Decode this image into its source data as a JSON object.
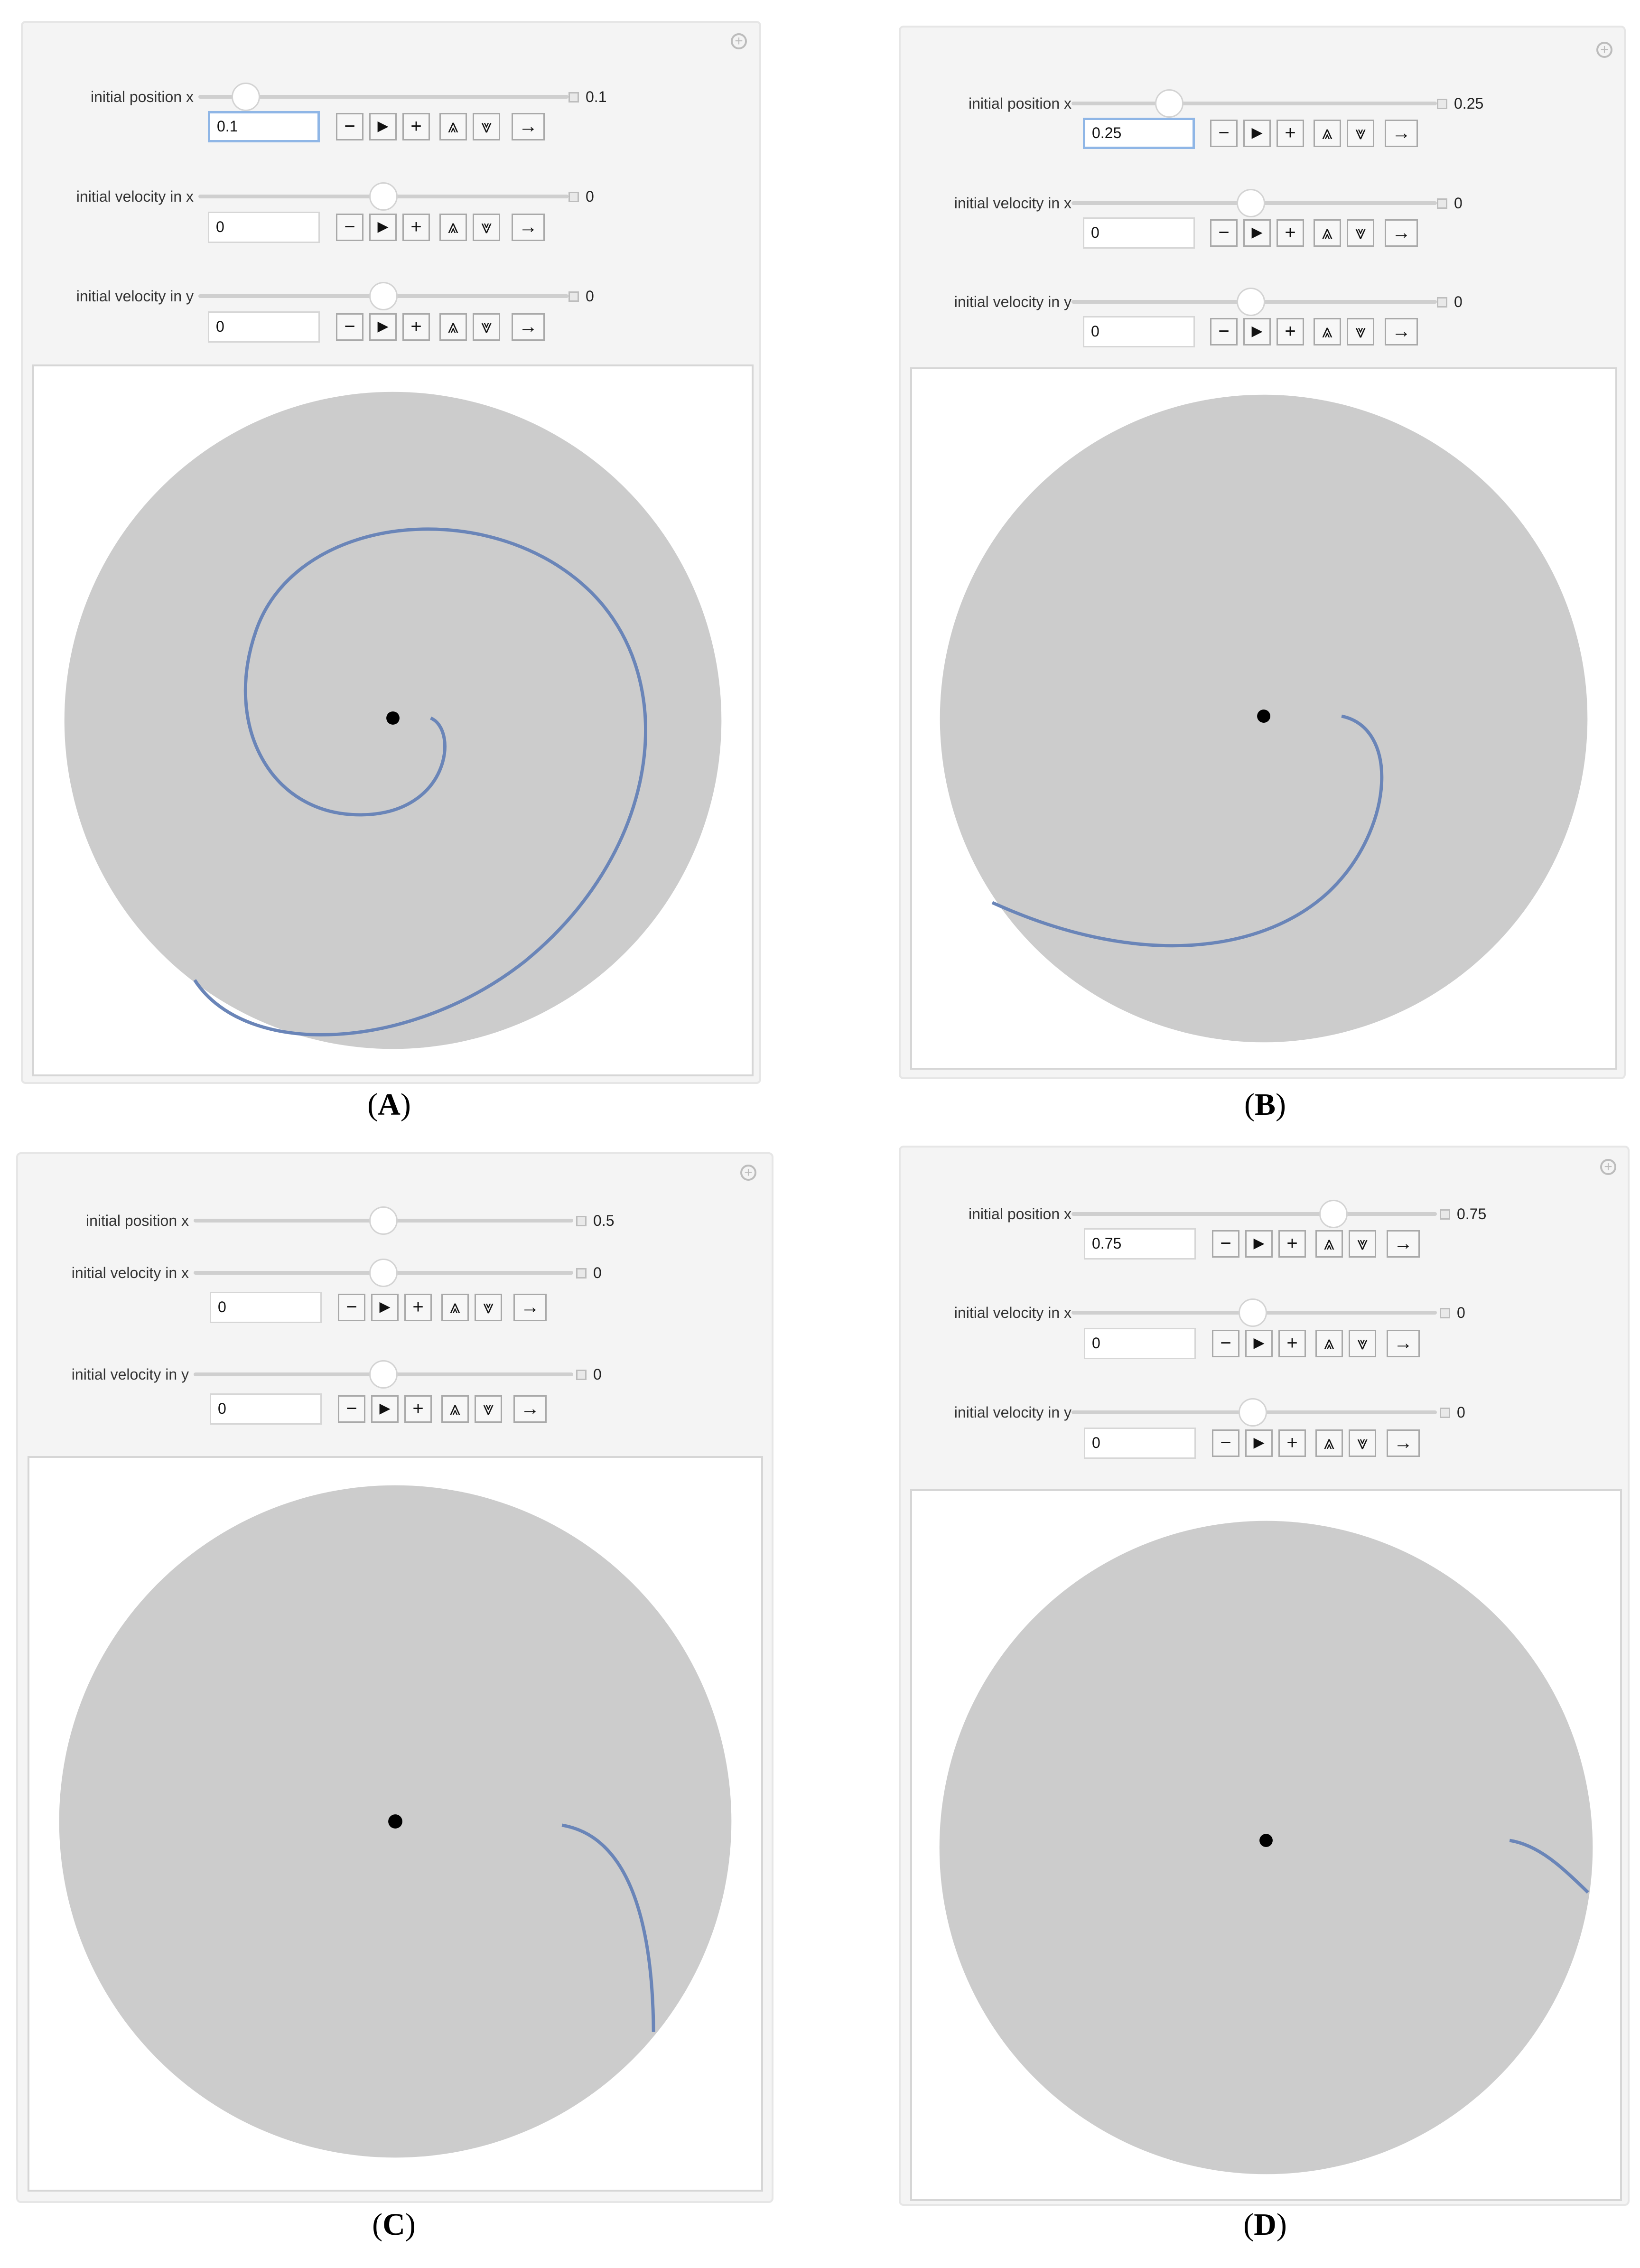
{
  "panels": [
    {
      "id": "A",
      "caption": "A",
      "position_x": {
        "label": "initial position x",
        "value": "0.1",
        "field_value": "0.1",
        "level": 0.1,
        "focused": true
      },
      "velocity_x": {
        "label": "initial velocity in x",
        "value": "0",
        "field_value": "0",
        "level": 0.5
      },
      "velocity_y": {
        "label": "initial velocity in y",
        "value": "0",
        "field_value": "0",
        "level": 0.5
      },
      "has_position_field": true
    },
    {
      "id": "B",
      "caption": "B",
      "position_x": {
        "label": "initial position x",
        "value": "0.25",
        "field_value": "0.25",
        "level": 0.25,
        "focused": true
      },
      "velocity_x": {
        "label": "initial velocity in x",
        "value": "0",
        "field_value": "0",
        "level": 0.5
      },
      "velocity_y": {
        "label": "initial velocity in y",
        "value": "0",
        "field_value": "0",
        "level": 0.5
      },
      "has_position_field": true
    },
    {
      "id": "C",
      "caption": "C",
      "position_x": {
        "label": "initial position x",
        "value": "0.5",
        "level": 0.5
      },
      "velocity_x": {
        "label": "initial velocity in x",
        "value": "0",
        "field_value": "0",
        "level": 0.5
      },
      "velocity_y": {
        "label": "initial velocity in y",
        "value": "0",
        "field_value": "0",
        "level": 0.5
      },
      "has_position_field": false
    },
    {
      "id": "D",
      "caption": "D",
      "position_x": {
        "label": "initial position x",
        "value": "0.75",
        "field_value": "0.75",
        "level": 0.75
      },
      "velocity_x": {
        "label": "initial velocity in x",
        "value": "0",
        "field_value": "0",
        "level": 0.5
      },
      "velocity_y": {
        "label": "initial velocity in y",
        "value": "0",
        "field_value": "0",
        "level": 0.5
      },
      "has_position_field": true
    }
  ],
  "buttons": {
    "decrement": "−",
    "play": "▶",
    "increment": "+",
    "faster": "⩓",
    "slower": "⩔",
    "direction": "→"
  },
  "icons": {
    "expand": "plus-circle-icon",
    "slider_box": "mini-square-icon"
  },
  "colors": {
    "disk": "#cccccc",
    "trajectory": "#6a85b8",
    "center": "#000000"
  }
}
